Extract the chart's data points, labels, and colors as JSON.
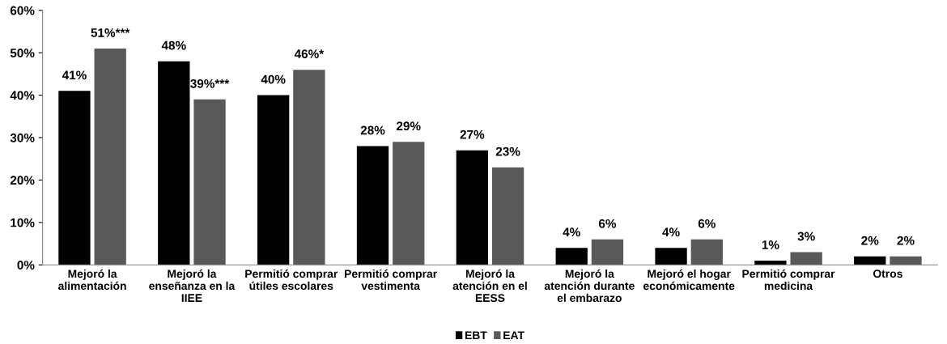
{
  "chart_data": {
    "type": "bar",
    "categories": [
      "Mejoró la\nalimentación",
      "Mejoró la\nenseñanza en la\nIIEE",
      "Permitió comprar\nútiles escolares",
      "Permitió comprar\nvestimenta",
      "Mejoró la\natención en el\nEESS",
      "Mejoró la\natención durante\nel embarazo",
      "Mejoró el hogar\neconómicamente",
      "Permitió comprar\nmedicina",
      "Otros"
    ],
    "series": [
      {
        "name": "EBT",
        "color": "#000000",
        "values": [
          41,
          48,
          40,
          28,
          27,
          4,
          4,
          1,
          2
        ],
        "value_labels": [
          "41%",
          "48%",
          "40%",
          "28%",
          "27%",
          "4%",
          "4%",
          "1%",
          "2%"
        ]
      },
      {
        "name": "EAT",
        "color": "#595959",
        "values": [
          51,
          39,
          46,
          29,
          23,
          6,
          6,
          3,
          2
        ],
        "value_labels": [
          "51%***",
          "39%***",
          "46%*",
          "29%",
          "23%",
          "6%",
          "6%",
          "3%",
          "2%"
        ]
      }
    ],
    "ylim": [
      0,
      60
    ],
    "yticks": [
      {
        "value": 0,
        "label": "0%"
      },
      {
        "value": 10,
        "label": "10%"
      },
      {
        "value": 20,
        "label": "20%"
      },
      {
        "value": 30,
        "label": "30%"
      },
      {
        "value": 40,
        "label": "40%"
      },
      {
        "value": 50,
        "label": "50%"
      },
      {
        "value": 60,
        "label": "60%"
      }
    ],
    "grid": false,
    "legend": "bottom"
  }
}
